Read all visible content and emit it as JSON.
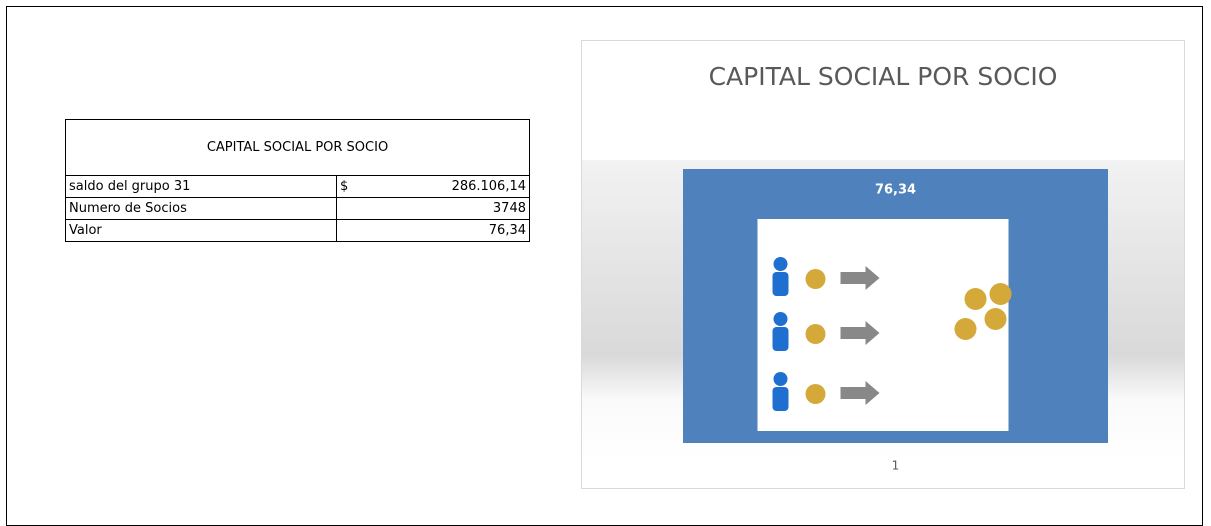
{
  "table": {
    "title": "CAPITAL SOCIAL POR SOCIO",
    "rows": [
      [
        "saldo del grupo 31",
        "$",
        "286.106,14"
      ],
      [
        "Numero de Socios",
        "3748"
      ],
      [
        "Valor",
        "76,34"
      ]
    ]
  },
  "chart_data": {
    "type": "bar",
    "title": "CAPITAL SOCIAL POR SOCIO",
    "categories": [
      "1"
    ],
    "values": [
      76.34
    ],
    "value_labels": [
      "76,34"
    ],
    "color": "#4f81bd"
  }
}
